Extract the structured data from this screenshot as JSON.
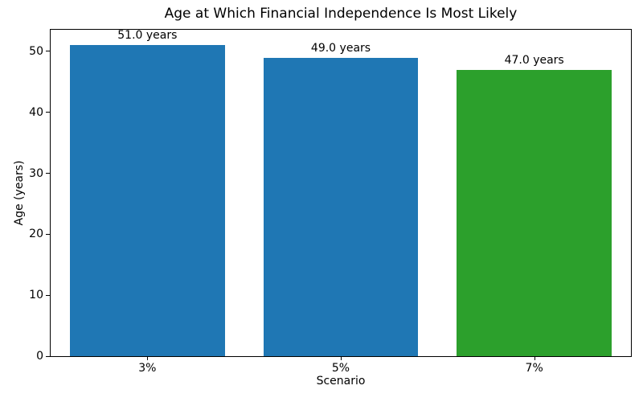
{
  "chart_data": {
    "type": "bar",
    "title": "Age at Which Financial Independence Is Most Likely",
    "xlabel": "Scenario",
    "ylabel": "Age (years)",
    "categories": [
      "3%",
      "5%",
      "7%"
    ],
    "values": [
      51.0,
      49.0,
      47.0
    ],
    "bar_labels": [
      "51.0 years",
      "49.0 years",
      "47.0 years"
    ],
    "bar_colors": [
      "#1f77b4",
      "#1f77b4",
      "#2ca02c"
    ],
    "ylim": [
      0,
      53.55
    ],
    "yticks": [
      0,
      10,
      20,
      30,
      40,
      50
    ],
    "bar_width_fraction": 0.8,
    "grid": false,
    "legend": "none",
    "colors": {
      "bar_blue": "#1f77b4",
      "bar_green": "#2ca02c",
      "text": "#000000",
      "spine": "#000000",
      "background": "#ffffff"
    }
  }
}
